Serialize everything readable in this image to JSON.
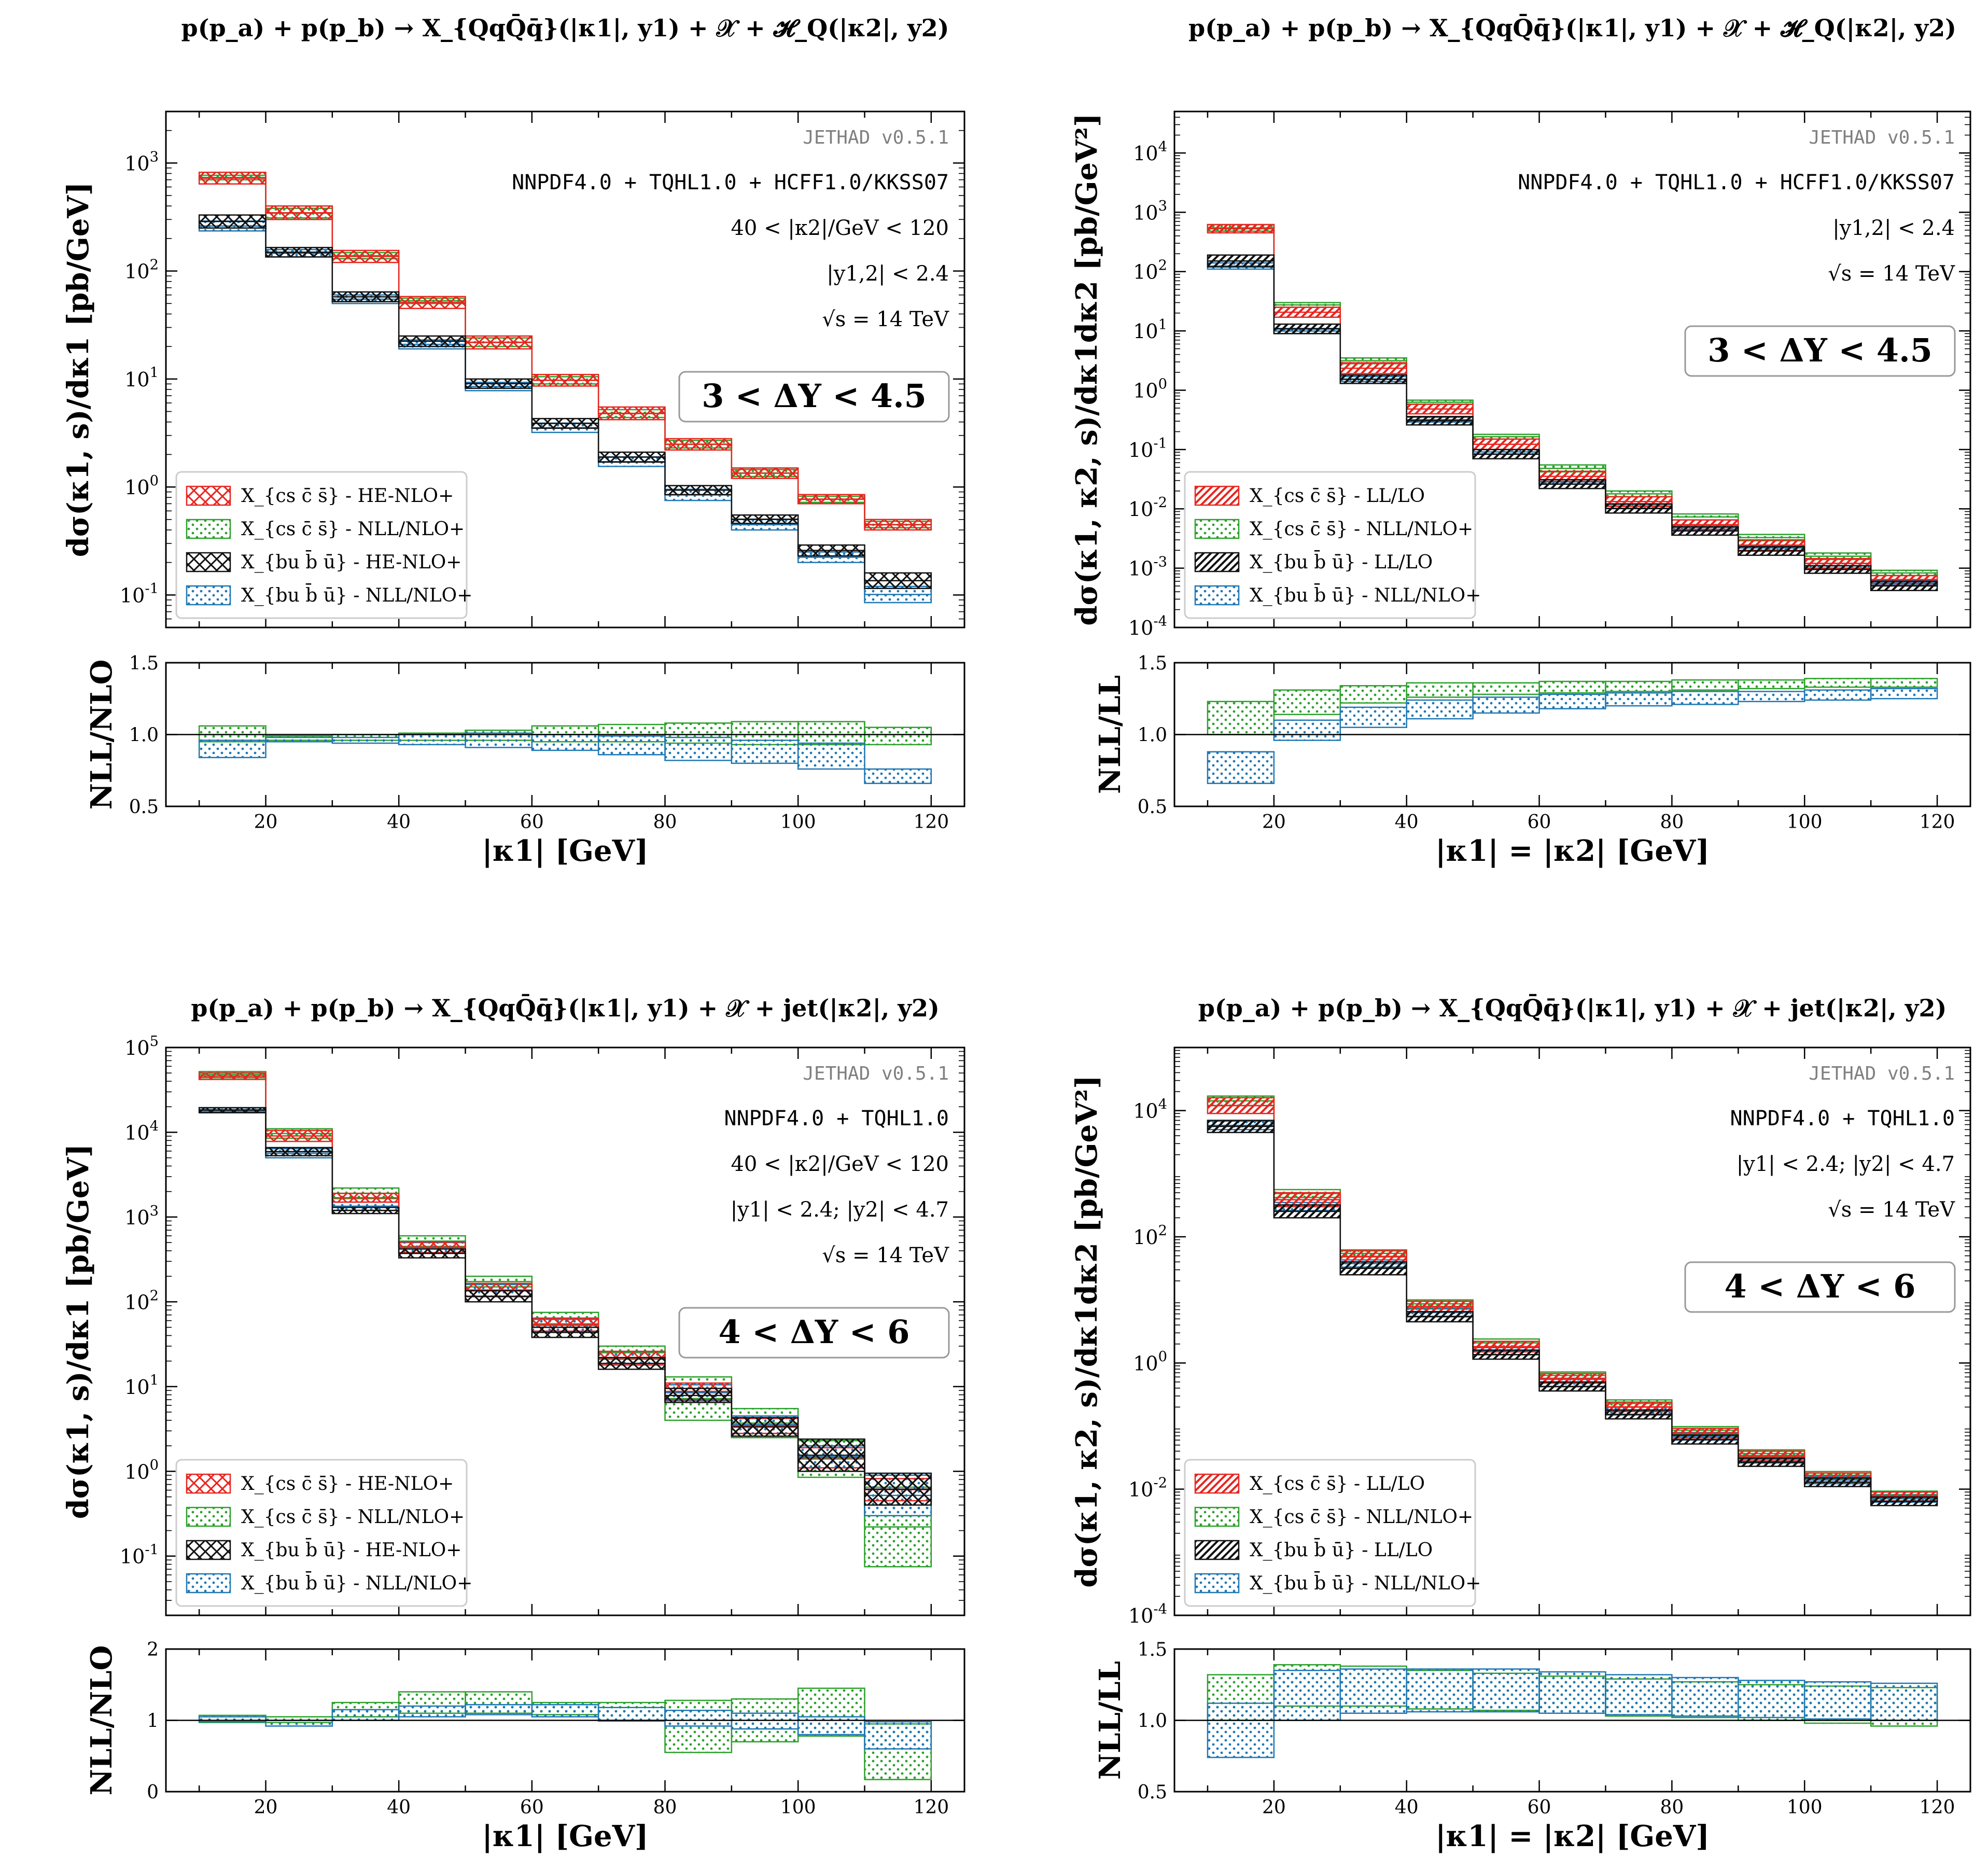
{
  "chart_data": [
    {
      "type": "bar",
      "id": "tl",
      "title": "p(p_a) + p(p_b) → X_{QqQ̄q̄}(|κ1|, y1) + 𝒳 + 𝓗_Q(|κ2|, y2)",
      "ylabel": "dσ(κ1, s)/dκ1 [pb/GeV]",
      "ratio_ylabel": "NLL/NLO",
      "xlabel": "|κ1| [GeV]",
      "yscale": "log",
      "ylim": [
        0.05,
        3000
      ],
      "yticks": [
        0.1,
        1,
        10,
        100,
        1000
      ],
      "ytick_labels": [
        "10^-1",
        "10^0",
        "10^1",
        "10^2",
        "10^3"
      ],
      "xlim": [
        5,
        125
      ],
      "xticks": [
        20,
        40,
        60,
        80,
        100,
        120
      ],
      "xtick_labels": [
        "20",
        "40",
        "60",
        "80",
        "100",
        "120"
      ],
      "ratio_ylim": [
        0.5,
        1.5
      ],
      "ratio_yticks": [
        0.5,
        1.0,
        1.5
      ],
      "ratio_ytick_labels": [
        "0.5",
        "1.0",
        "1.5"
      ],
      "bins": [
        10,
        20,
        30,
        40,
        50,
        60,
        70,
        80,
        90,
        100,
        110,
        120
      ],
      "annotations": [
        "JETHAD v0.5.1",
        "NNPDF4.0 + TQHL1.0 + HCFF1.0/KKSS07",
        "40 < |κ2|/GeV < 120",
        "|y1,2| < 2.4",
        "√s = 14 TeV"
      ],
      "rapidity_box": "3 < ΔY < 4.5",
      "legend_position": "bottom-left",
      "series": [
        {
          "name": "X_{cs c̄ s̄} - HE-NLO+",
          "lo": [
            640,
            300,
            120,
            45,
            19,
            8.6,
            4.2,
            2.2,
            1.2,
            0.7,
            0.4
          ],
          "hi": [
            820,
            400,
            155,
            58,
            25,
            11,
            5.5,
            2.8,
            1.5,
            0.85,
            0.5
          ]
        },
        {
          "name": "X_{cs c̄ s̄} - NLL/NLO+",
          "lo": [
            700,
            310,
            130,
            50,
            20,
            9.0,
            4.4,
            2.3,
            1.25,
            0.72,
            0.42
          ],
          "hi": [
            770,
            380,
            148,
            56,
            24,
            10.5,
            5.2,
            2.7,
            1.45,
            0.82,
            0.48
          ]
        },
        {
          "name": "X_{bu b̄ ū} - HE-NLO+",
          "lo": [
            250,
            135,
            52,
            20,
            8.2,
            3.5,
            1.7,
            0.85,
            0.46,
            0.23,
            0.115
          ],
          "hi": [
            330,
            165,
            64,
            25,
            10,
            4.3,
            2.1,
            1.03,
            0.55,
            0.29,
            0.16
          ]
        },
        {
          "name": "X_{bu b̄ ū} - NLL/NLO+",
          "lo": [
            235,
            135,
            50,
            19,
            7.8,
            3.2,
            1.55,
            0.75,
            0.4,
            0.2,
            0.085
          ],
          "hi": [
            290,
            158,
            60,
            23,
            9.3,
            3.9,
            1.9,
            0.95,
            0.5,
            0.25,
            0.12
          ]
        }
      ],
      "ratio": [
        {
          "name": "X_{cs c̄ s̄}",
          "lo": [
            0.95,
            0.96,
            0.96,
            0.96,
            0.96,
            0.95,
            0.95,
            0.94,
            0.93,
            0.93,
            0.93
          ],
          "hi": [
            1.06,
            0.99,
            1.0,
            1.01,
            1.03,
            1.06,
            1.07,
            1.08,
            1.09,
            1.09,
            1.05
          ]
        },
        {
          "name": "X_{bu b̄ ū}",
          "lo": [
            0.84,
            0.95,
            0.94,
            0.93,
            0.91,
            0.89,
            0.86,
            0.82,
            0.8,
            0.76,
            0.66
          ],
          "hi": [
            0.96,
            0.98,
            0.98,
            1.0,
            1.01,
            1.0,
            0.99,
            0.98,
            0.96,
            0.94,
            0.76
          ]
        }
      ]
    },
    {
      "type": "bar",
      "id": "tr",
      "title": "p(p_a) + p(p_b) → X_{QqQ̄q̄}(|κ1|, y1) + 𝒳 + 𝓗_Q(|κ2|, y2)",
      "ylabel": "dσ(κ1, κ2, s)/dκ1dκ2 [pb/GeV²]",
      "ratio_ylabel": "NLL/LL",
      "xlabel": "|κ1| = |κ2| [GeV]",
      "yscale": "log",
      "ylim": [
        0.0001,
        50000
      ],
      "yticks": [
        0.0001,
        0.001,
        0.01,
        0.1,
        1,
        10,
        100,
        1000,
        10000
      ],
      "ytick_labels": [
        "10^-4",
        "10^-3",
        "10^-2",
        "10^-1",
        "10^0",
        "10^1",
        "10^2",
        "10^3",
        "10^4"
      ],
      "xlim": [
        5,
        125
      ],
      "xticks": [
        20,
        40,
        60,
        80,
        100,
        120
      ],
      "xtick_labels": [
        "20",
        "40",
        "60",
        "80",
        "100",
        "120"
      ],
      "ratio_ylim": [
        0.5,
        1.5
      ],
      "ratio_yticks": [
        0.5,
        1.0,
        1.5
      ],
      "ratio_ytick_labels": [
        "0.5",
        "1.0",
        "1.5"
      ],
      "bins": [
        10,
        20,
        30,
        40,
        50,
        60,
        70,
        80,
        90,
        100,
        110,
        120
      ],
      "annotations": [
        "JETHAD v0.5.1",
        "NNPDF4.0 + TQHL1.0 + HCFF1.0/KKSS07",
        "|y1,2| < 2.4",
        "√s = 14 TeV"
      ],
      "rapidity_box": "3 < ΔY < 4.5",
      "legend_position": "bottom-left",
      "series": [
        {
          "name": "X_{cs c̄ s̄} - LL/LO",
          "lo": [
            450,
            17,
            1.9,
            0.4,
            0.1,
            0.029,
            0.011,
            0.0045,
            0.002,
            0.001,
            0.00055
          ],
          "hi": [
            620,
            25,
            2.9,
            0.58,
            0.15,
            0.043,
            0.016,
            0.0065,
            0.003,
            0.00145,
            0.00075
          ]
        },
        {
          "name": "X_{cs c̄ s̄} - NLL/NLO+",
          "lo": [
            480,
            25,
            2.8,
            0.58,
            0.15,
            0.042,
            0.016,
            0.0065,
            0.0029,
            0.0014,
            0.00075
          ],
          "hi": [
            620,
            30,
            3.5,
            0.68,
            0.18,
            0.055,
            0.02,
            0.0082,
            0.0037,
            0.0018,
            0.00092
          ]
        },
        {
          "name": "X_{bu b̄ ū} - LL/LO",
          "lo": [
            120,
            9.0,
            1.3,
            0.26,
            0.07,
            0.022,
            0.0085,
            0.0036,
            0.00165,
            0.00082,
            0.00042
          ],
          "hi": [
            190,
            13,
            1.8,
            0.36,
            0.1,
            0.031,
            0.012,
            0.005,
            0.0023,
            0.0011,
            0.0006
          ]
        },
        {
          "name": "X_{bu b̄ ū} - NLL/NLO+",
          "lo": [
            110,
            9.0,
            1.4,
            0.29,
            0.083,
            0.026,
            0.0102,
            0.0044,
            0.002,
            0.001,
            0.00052
          ],
          "hi": [
            140,
            11,
            1.7,
            0.35,
            0.1,
            0.031,
            0.0122,
            0.0053,
            0.0024,
            0.0012,
            0.00062
          ]
        }
      ],
      "ratio": [
        {
          "name": "X_{cs c̄ s̄}",
          "lo": [
            1.0,
            1.14,
            1.22,
            1.26,
            1.28,
            1.29,
            1.3,
            1.31,
            1.32,
            1.33,
            1.33
          ],
          "hi": [
            1.23,
            1.31,
            1.34,
            1.36,
            1.36,
            1.37,
            1.37,
            1.38,
            1.38,
            1.39,
            1.39
          ]
        },
        {
          "name": "X_{bu b̄ ū}",
          "lo": [
            0.66,
            0.96,
            1.05,
            1.11,
            1.15,
            1.18,
            1.2,
            1.21,
            1.23,
            1.24,
            1.25
          ],
          "hi": [
            0.88,
            1.1,
            1.19,
            1.24,
            1.26,
            1.28,
            1.29,
            1.3,
            1.3,
            1.31,
            1.32
          ]
        }
      ]
    },
    {
      "type": "bar",
      "id": "bl",
      "title": "p(p_a) + p(p_b) → X_{QqQ̄q̄}(|κ1|, y1) + 𝒳 + jet(|κ2|, y2)",
      "ylabel": "dσ(κ1, s)/dκ1 [pb/GeV]",
      "ratio_ylabel": "NLL/NLO",
      "xlabel": "|κ1| [GeV]",
      "yscale": "log",
      "ylim": [
        0.02,
        100000
      ],
      "yticks": [
        0.1,
        1,
        10,
        100,
        1000,
        10000,
        100000
      ],
      "ytick_labels": [
        "10^-1",
        "10^0",
        "10^1",
        "10^2",
        "10^3",
        "10^4",
        "10^5"
      ],
      "xlim": [
        5,
        125
      ],
      "xticks": [
        20,
        40,
        60,
        80,
        100,
        120
      ],
      "xtick_labels": [
        "20",
        "40",
        "60",
        "80",
        "100",
        "120"
      ],
      "ratio_ylim": [
        0,
        2
      ],
      "ratio_yticks": [
        0,
        1,
        2
      ],
      "ratio_ytick_labels": [
        "0",
        "1",
        "2"
      ],
      "bins": [
        10,
        20,
        30,
        40,
        50,
        60,
        70,
        80,
        90,
        100,
        110,
        120
      ],
      "annotations": [
        "JETHAD v0.5.1",
        "NNPDF4.0 + TQHL1.0",
        "40 < |κ2|/GeV < 120",
        "|y1| < 2.4;  |y2| < 4.7",
        "√s = 14 TeV"
      ],
      "rapidity_box": "4 < ΔY < 6",
      "legend_position": "bottom-left",
      "series": [
        {
          "name": "X_{cs c̄ s̄} - HE-NLO+",
          "lo": [
            42000,
            7800,
            1500,
            380,
            115,
            45,
            18,
            7.0,
            2.8,
            1.1,
            0.45
          ],
          "hi": [
            50000,
            10500,
            1900,
            510,
            165,
            64,
            26,
            11,
            4.2,
            1.9,
            0.82
          ]
        },
        {
          "name": "X_{cs c̄ s̄} - NLL/NLO+",
          "lo": [
            44000,
            8500,
            1650,
            450,
            150,
            55,
            21,
            4.0,
            2.5,
            0.85,
            0.075
          ]
        },
        {
          "name": "X_{bu b̄ ū} - HE-NLO+",
          "lo": [
            17000,
            5300,
            1100,
            330,
            100,
            38,
            16,
            6.5,
            2.6,
            1.0,
            0.4
          ],
          "hi": [
            19500,
            6600,
            1300,
            420,
            135,
            50,
            22,
            9.5,
            4.3,
            2.4,
            0.95
          ]
        },
        {
          "name": "X_{bu b̄ ū} - NLL/NLO+",
          "lo": [
            17500,
            5000,
            1200,
            380,
            115,
            45,
            18,
            6.8,
            2.8,
            1.1,
            0.3
          ]
        }
      ],
      "series_hi_extra": {
        "X_{cs c̄ s̄} - NLL/NLO+": [
          52000,
          11000,
          2200,
          600,
          200,
          75,
          30,
          13,
          5.5,
          2.3,
          0.65
        ],
        "X_{bu b̄ ū} - NLL/NLO+": [
          19500,
          6400,
          1500,
          500,
          160,
          62,
          26,
          10.5,
          4.5,
          2.0,
          0.9
        ]
      },
      "ratio": [
        {
          "name": "X_{cs c̄ s̄}",
          "lo": [
            0.97,
            0.97,
            1.05,
            1.1,
            1.1,
            1.08,
            1.0,
            0.55,
            0.7,
            0.78,
            0.17
          ],
          "hi": [
            1.07,
            1.05,
            1.25,
            1.4,
            1.4,
            1.25,
            1.25,
            1.28,
            1.3,
            1.45,
            0.95
          ]
        },
        {
          "name": "X_{bu b̄ ū}",
          "lo": [
            0.98,
            0.92,
            1.0,
            1.05,
            1.08,
            1.05,
            0.99,
            0.92,
            0.88,
            0.8,
            0.6
          ],
          "hi": [
            1.05,
            1.0,
            1.15,
            1.2,
            1.22,
            1.22,
            1.18,
            1.14,
            1.1,
            1.05,
            0.98
          ]
        }
      ]
    },
    {
      "type": "bar",
      "id": "br",
      "title": "p(p_a) + p(p_b) → X_{QqQ̄q̄}(|κ1|, y1) + 𝒳 + jet(|κ2|, y2)",
      "ylabel": "dσ(κ1, κ2, s)/dκ1dκ2 [pb/GeV²]",
      "ratio_ylabel": "NLL/LL",
      "xlabel": "|κ1| = |κ2| [GeV]",
      "yscale": "log",
      "ylim": [
        0.0001,
        100000
      ],
      "yticks": [
        0.0001,
        0.01,
        1,
        100,
        10000
      ],
      "ytick_labels": [
        "10^-4",
        "10^-2",
        "10^0",
        "10^2",
        "10^4"
      ],
      "xlim": [
        5,
        125
      ],
      "xticks": [
        20,
        40,
        60,
        80,
        100,
        120
      ],
      "xtick_labels": [
        "20",
        "40",
        "60",
        "80",
        "100",
        "120"
      ],
      "ratio_ylim": [
        0.5,
        1.5
      ],
      "ratio_yticks": [
        0.5,
        1.0,
        1.5
      ],
      "ratio_ytick_labels": [
        "0.5",
        "1.0",
        "1.5"
      ],
      "bins": [
        10,
        20,
        30,
        40,
        50,
        60,
        70,
        80,
        90,
        100,
        110,
        120
      ],
      "annotations": [
        "JETHAD v0.5.1",
        "NNPDF4.0 + TQHL1.0",
        "|y1| < 2.4;  |y2| < 4.7",
        "√s = 14 TeV"
      ],
      "rapidity_box": "4 < ΔY < 6",
      "legend_position": "bottom-left",
      "series": [
        {
          "name": "X_{cs c̄ s̄} - LL/LO",
          "lo": [
            9000,
            300,
            40,
            6.5,
            1.5,
            0.48,
            0.17,
            0.065,
            0.028,
            0.013,
            0.0065
          ],
          "hi": [
            16000,
            500,
            60,
            9.5,
            2.2,
            0.68,
            0.24,
            0.092,
            0.04,
            0.018,
            0.009
          ]
        },
        {
          "name": "X_{cs c̄ s̄} - NLL/NLO+",
          "lo": [
            12000,
            420,
            48,
            7.5,
            1.8,
            0.56,
            0.2,
            0.075,
            0.032,
            0.0145,
            0.0072
          ],
          "hi": [
            17000,
            560,
            62,
            10,
            2.4,
            0.72,
            0.26,
            0.098,
            0.042,
            0.019,
            0.0093
          ]
        },
        {
          "name": "X_{bu b̄ ū} - LL/LO",
          "lo": [
            4500,
            200,
            25,
            4.5,
            1.15,
            0.36,
            0.13,
            0.052,
            0.023,
            0.011,
            0.0055
          ],
          "hi": [
            7000,
            320,
            40,
            6.5,
            1.6,
            0.5,
            0.18,
            0.072,
            0.031,
            0.015,
            0.0075
          ]
        },
        {
          "name": "X_{bu b̄ ū} - NLL/NLO+",
          "lo": [
            5000,
            260,
            33,
            5.5,
            1.35,
            0.42,
            0.15,
            0.06,
            0.026,
            0.0122,
            0.0062
          ],
          "hi": [
            6800,
            350,
            43,
            7.2,
            1.75,
            0.55,
            0.2,
            0.079,
            0.034,
            0.016,
            0.008
          ]
        }
      ],
      "ratio": [
        {
          "name": "X_{cs c̄ s̄}",
          "lo": [
            1.0,
            1.1,
            1.1,
            1.08,
            1.07,
            1.05,
            1.03,
            1.02,
            1.0,
            0.98,
            0.96
          ],
          "hi": [
            1.32,
            1.39,
            1.38,
            1.35,
            1.33,
            1.31,
            1.29,
            1.27,
            1.25,
            1.24,
            1.23
          ]
        },
        {
          "name": "X_{bu b̄ ū}",
          "lo": [
            0.74,
            1.0,
            1.05,
            1.06,
            1.06,
            1.05,
            1.04,
            1.03,
            1.02,
            1.01,
            1.0
          ],
          "hi": [
            1.12,
            1.35,
            1.36,
            1.36,
            1.36,
            1.34,
            1.32,
            1.3,
            1.28,
            1.27,
            1.26
          ]
        }
      ]
    }
  ],
  "legend_styles": {
    "cs_he": {
      "color": "#e8251f",
      "pattern": "cross"
    },
    "cs_nll": {
      "color": "#2ca02c",
      "pattern": "dots"
    },
    "bu_he": {
      "color": "#111111",
      "pattern": "cross"
    },
    "bu_nll": {
      "color": "#1f77b4",
      "pattern": "dots"
    },
    "cs_ll": {
      "color": "#e8251f",
      "pattern": "diag"
    },
    "bu_ll": {
      "color": "#111111",
      "pattern": "diag"
    }
  },
  "legend_text": {
    "tl": [
      "X_{cs c̄ s̄} - HE-NLO+",
      "X_{cs c̄ s̄} - NLL/NLO+",
      "X_{bu b̄ ū} - HE-NLO+",
      "X_{bu b̄ ū} - NLL/NLO+"
    ],
    "tr": [
      "X_{cs c̄ s̄} - LL/LO",
      "X_{cs c̄ s̄} - NLL/NLO+",
      "X_{bu b̄ ū} - LL/LO",
      "X_{bu b̄ ū} - NLL/NLO+"
    ],
    "bl": [
      "X_{cs c̄ s̄} - HE-NLO+",
      "X_{cs c̄ s̄} - NLL/NLO+",
      "X_{bu b̄ ū} - HE-NLO+",
      "X_{bu b̄ ū} - NLL/NLO+"
    ],
    "br": [
      "X_{cs c̄ s̄} - LL/LO",
      "X_{cs c̄ s̄} - NLL/NLO+",
      "X_{bu b̄ ū} - LL/LO",
      "X_{bu b̄ ū} - NLL/NLO+"
    ]
  }
}
